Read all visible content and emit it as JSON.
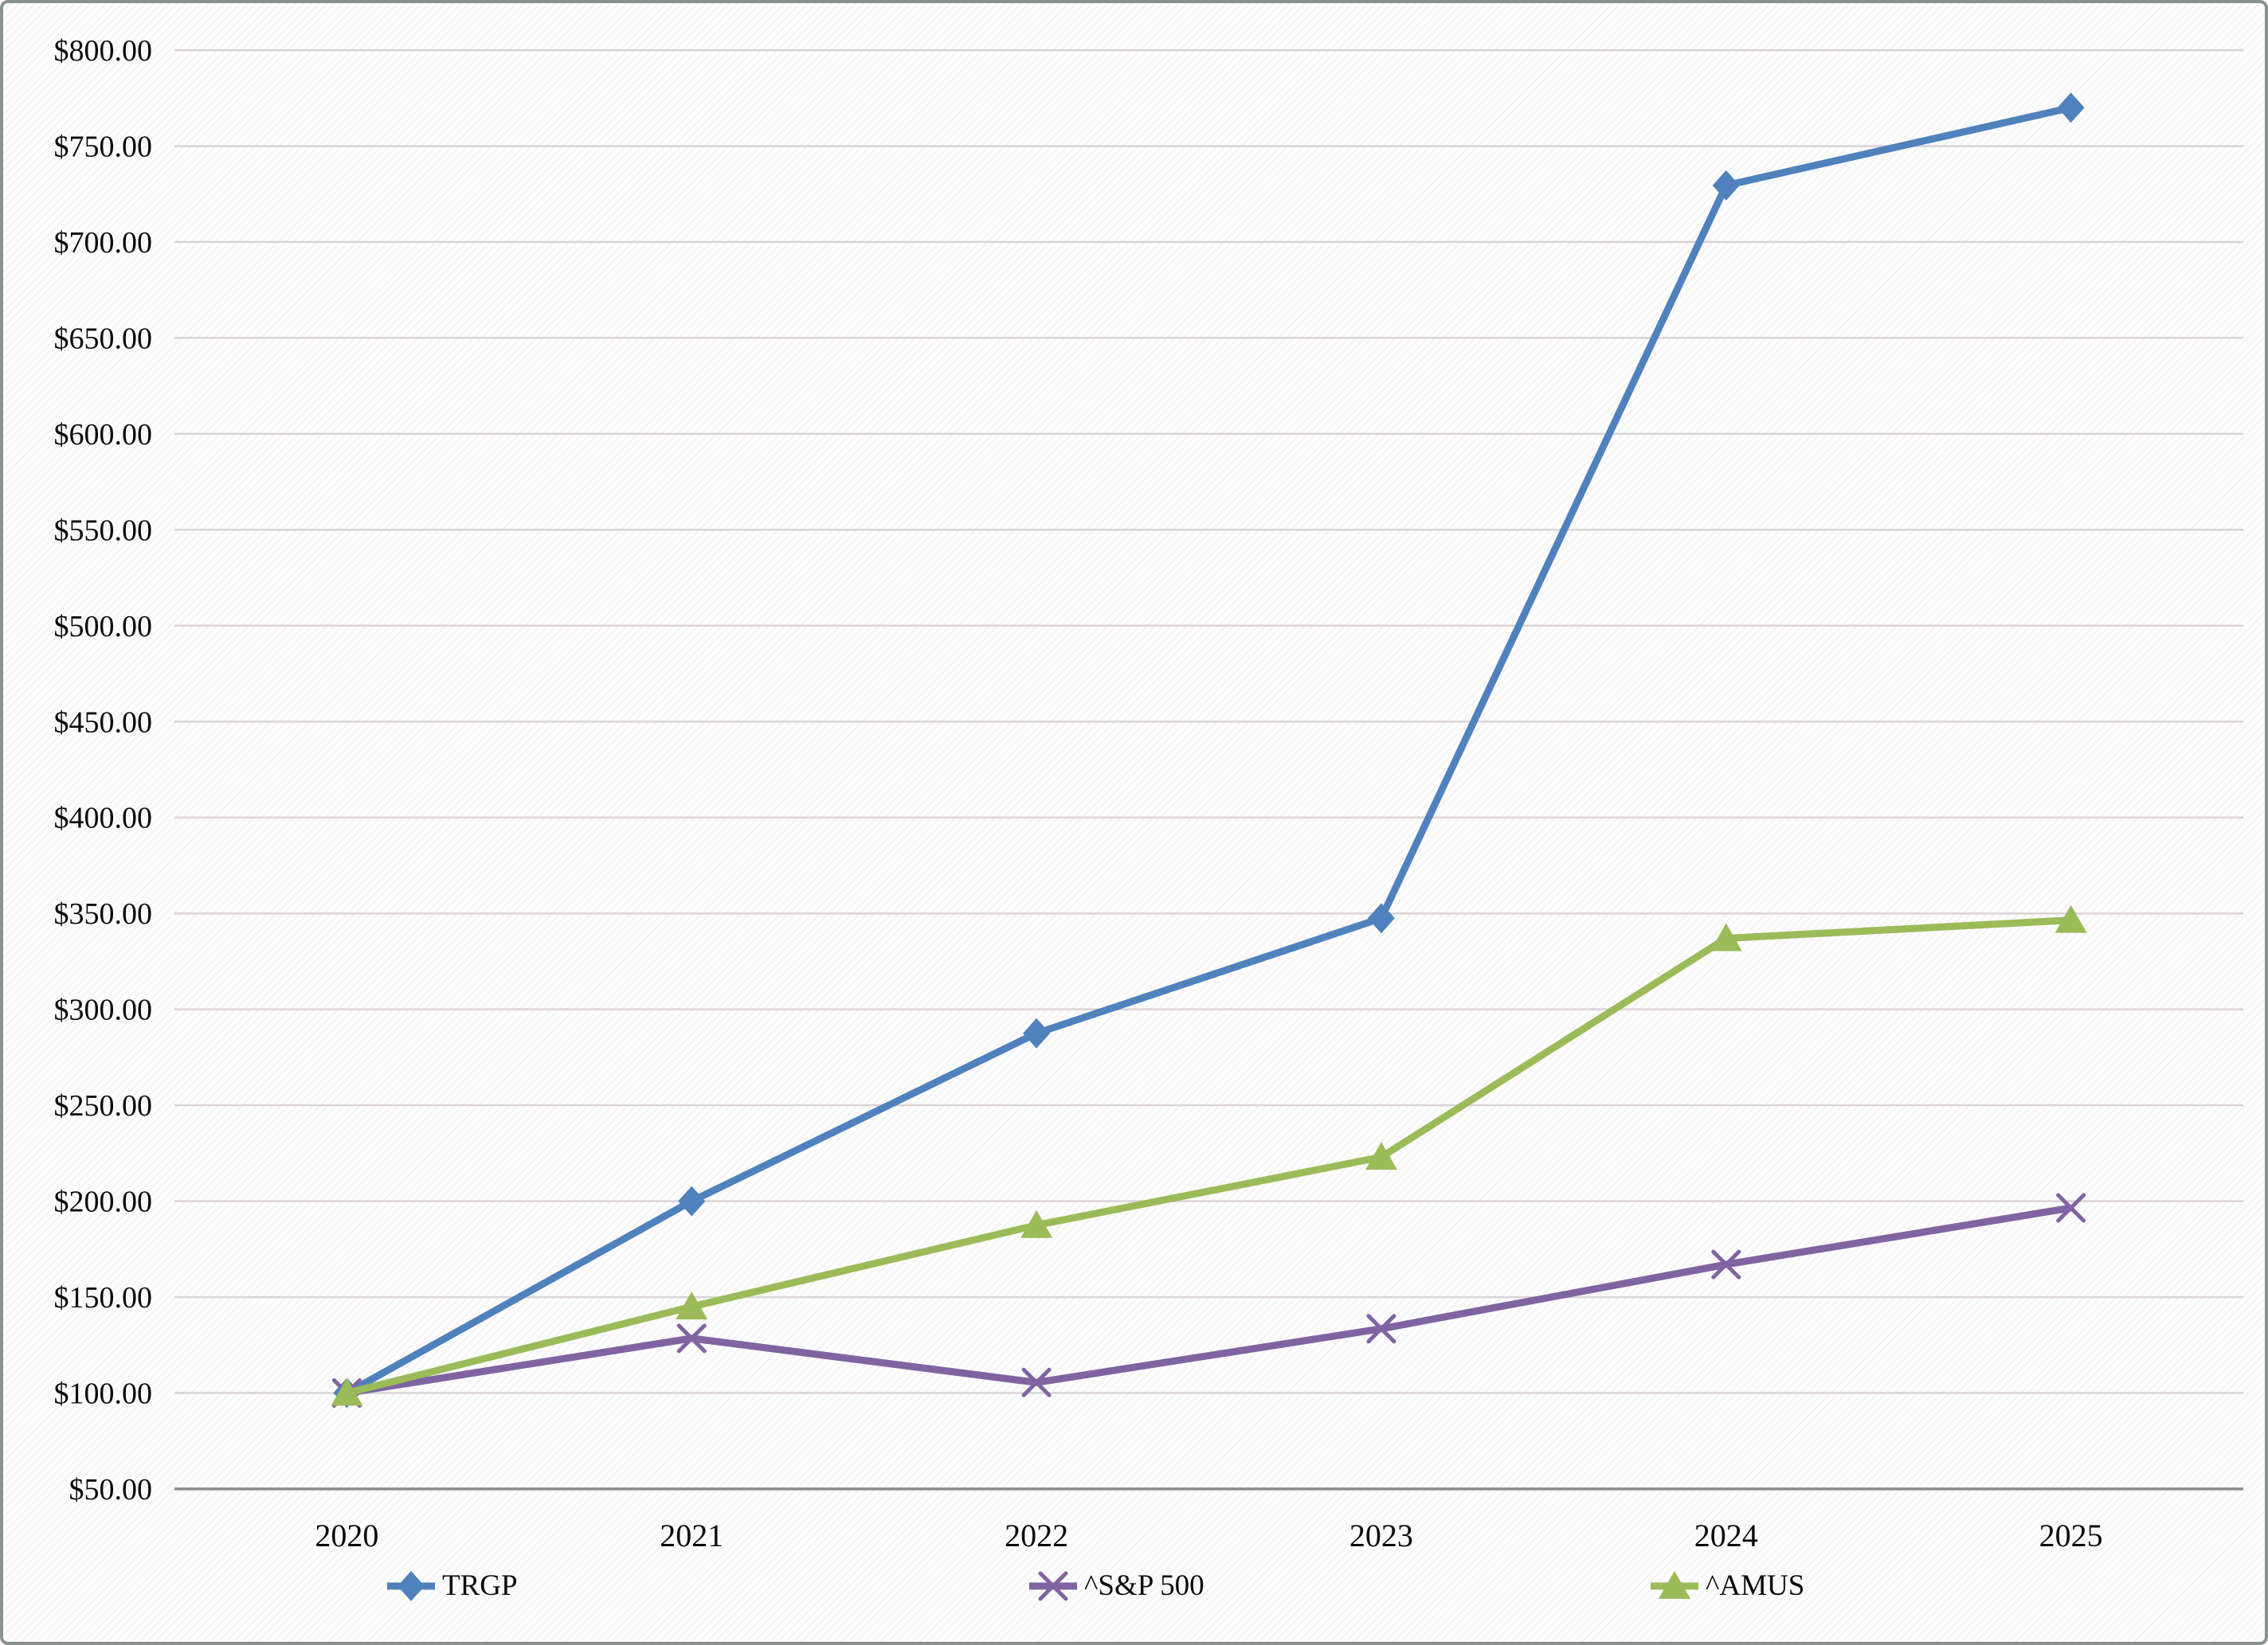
{
  "chart_data": {
    "type": "line",
    "title": "",
    "categories": [
      "2020",
      "2021",
      "2022",
      "2023",
      "2024",
      "2025"
    ],
    "series": [
      {
        "name": "TRGP",
        "color": "#4F81BD",
        "marker": "diamond",
        "values": [
          100.0,
          200.0,
          287.5,
          347.5,
          729.5,
          770.0
        ]
      },
      {
        "name": "^S&P 500",
        "color": "#8064A2",
        "marker": "x",
        "values": [
          100.0,
          128.5,
          105.5,
          133.5,
          167.0,
          196.5
        ]
      },
      {
        "name": "^AMUS",
        "color": "#9BBB59",
        "marker": "triangle",
        "values": [
          100.0,
          145.0,
          187.5,
          223.0,
          337.0,
          346.5
        ]
      }
    ],
    "xlabel": "",
    "ylabel": "",
    "y_axis": {
      "min": 50,
      "max": 800,
      "step": 50,
      "format": "currency",
      "tick_labels": [
        "$50.00",
        "$100.00",
        "$150.00",
        "$200.00",
        "$250.00",
        "$300.00",
        "$350.00",
        "$400.00",
        "$450.00",
        "$500.00",
        "$550.00",
        "$600.00",
        "$650.00",
        "$700.00",
        "$750.00",
        "$800.00"
      ]
    },
    "grid": true,
    "legend_position": "bottom",
    "colors": {
      "gridline": "#DAD3D7",
      "axis_line": "#8C8C8C",
      "text": "#0B0B0B"
    }
  }
}
